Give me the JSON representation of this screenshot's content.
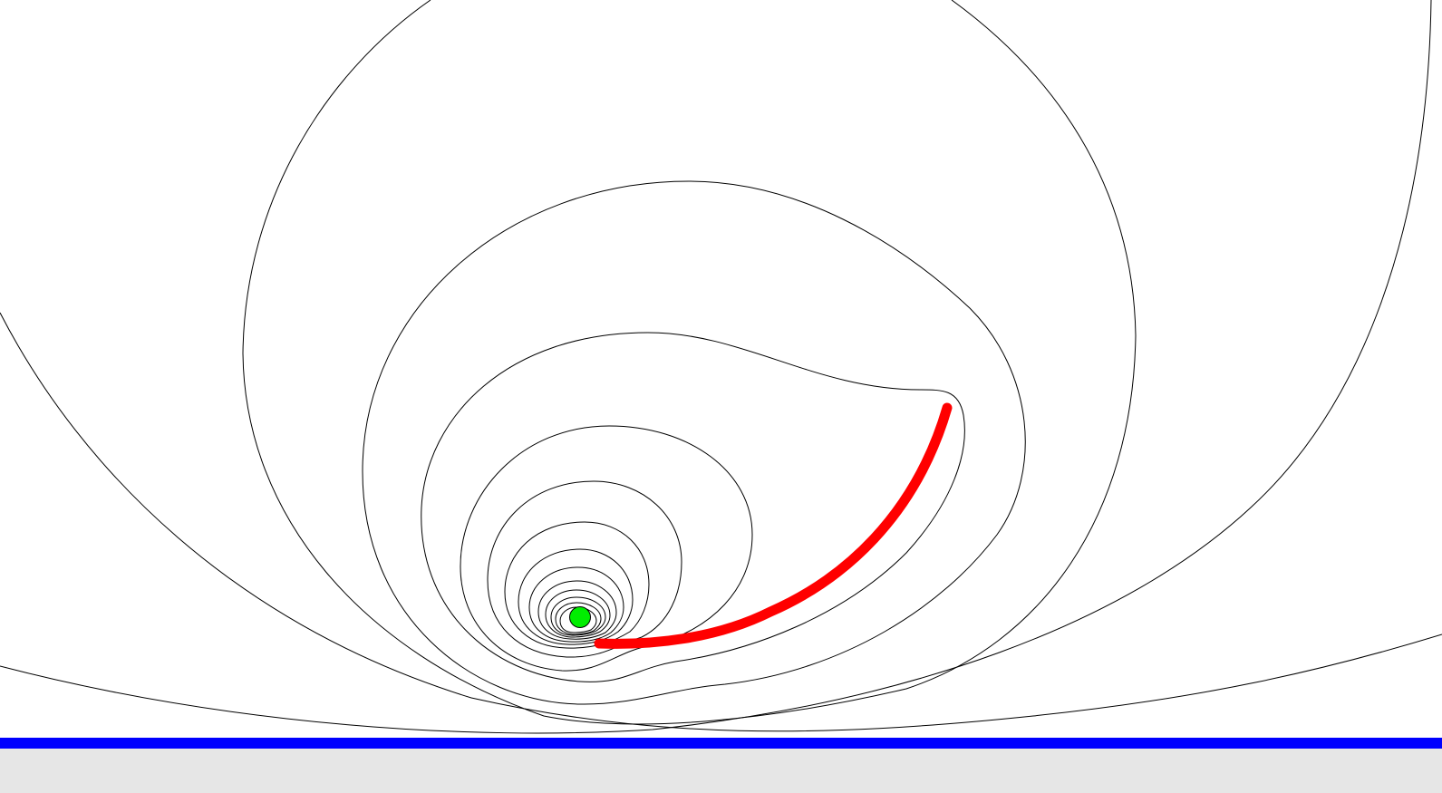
{
  "scene": {
    "background_color": "#ffffff",
    "contour_color": "#000000",
    "contour_count": 15,
    "point_source": {
      "color": "#00ee00",
      "outline_color": "#000000"
    },
    "charged_arc": {
      "color": "#ff0000"
    },
    "boundary_line": {
      "color": "#0000ff"
    },
    "bottom_panel": {
      "color": "#e6e6e6"
    }
  }
}
